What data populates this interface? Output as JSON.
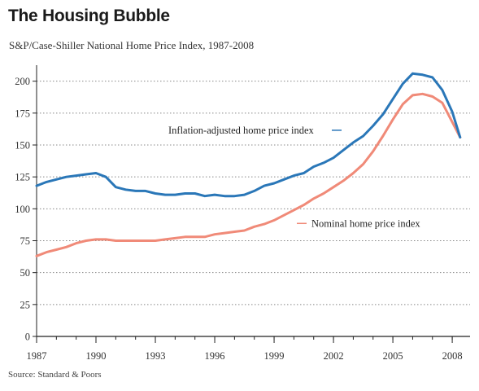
{
  "header": {
    "title": "The Housing Bubble",
    "subtitle": "S&P/Case-Shiller National Home Price Index, 1987-2008"
  },
  "footer": {
    "source": "Source: Standard & Poors"
  },
  "colors": {
    "inflation_adjusted": "#2a77b8",
    "nominal": "#f08a78",
    "grid": "#888888",
    "axis": "#222222"
  },
  "chart_data": {
    "type": "line",
    "title": "The Housing Bubble",
    "subtitle": "S&P/Case-Shiller National Home Price Index, 1987-2008",
    "xlabel": "",
    "ylabel": "",
    "xlim": [
      1987,
      2008.9
    ],
    "ylim": [
      0,
      210
    ],
    "grid": true,
    "x_ticks": [
      1987,
      1990,
      1993,
      1996,
      1999,
      2002,
      2005,
      2008
    ],
    "y_ticks": [
      0,
      25,
      50,
      75,
      100,
      125,
      150,
      175,
      200
    ],
    "annotations": [
      {
        "text": "Inflation-adjusted home price index",
        "series": 0
      },
      {
        "text": "Nominal home price index",
        "series": 1
      }
    ],
    "series": [
      {
        "name": "Inflation-adjusted home price index",
        "x": [
          1987,
          1987.5,
          1988,
          1988.5,
          1989,
          1989.5,
          1990,
          1990.5,
          1991,
          1991.5,
          1992,
          1992.5,
          1993,
          1993.5,
          1994,
          1994.5,
          1995,
          1995.5,
          1996,
          1996.5,
          1997,
          1997.5,
          1998,
          1998.5,
          1999,
          1999.5,
          2000,
          2000.5,
          2001,
          2001.5,
          2002,
          2002.5,
          2003,
          2003.5,
          2004,
          2004.5,
          2005,
          2005.5,
          2006,
          2006.5,
          2007,
          2007.5,
          2008,
          2008.4
        ],
        "values": [
          118,
          121,
          123,
          125,
          126,
          127,
          128,
          125,
          117,
          115,
          114,
          114,
          112,
          111,
          111,
          112,
          112,
          110,
          111,
          110,
          110,
          111,
          114,
          118,
          120,
          123,
          126,
          128,
          133,
          136,
          140,
          146,
          152,
          157,
          165,
          174,
          186,
          198,
          206,
          205,
          203,
          193,
          176,
          156
        ]
      },
      {
        "name": "Nominal home price index",
        "x": [
          1987,
          1987.5,
          1988,
          1988.5,
          1989,
          1989.5,
          1990,
          1990.5,
          1991,
          1991.5,
          1992,
          1992.5,
          1993,
          1993.5,
          1994,
          1994.5,
          1995,
          1995.5,
          1996,
          1996.5,
          1997,
          1997.5,
          1998,
          1998.5,
          1999,
          1999.5,
          2000,
          2000.5,
          2001,
          2001.5,
          2002,
          2002.5,
          2003,
          2003.5,
          2004,
          2004.5,
          2005,
          2005.5,
          2006,
          2006.5,
          2007,
          2007.5,
          2008,
          2008.4
        ],
        "values": [
          63,
          66,
          68,
          70,
          73,
          75,
          76,
          76,
          75,
          75,
          75,
          75,
          75,
          76,
          77,
          78,
          78,
          78,
          80,
          81,
          82,
          83,
          86,
          88,
          91,
          95,
          99,
          103,
          108,
          112,
          117,
          122,
          128,
          135,
          145,
          157,
          170,
          182,
          189,
          190,
          188,
          183,
          168,
          156
        ]
      }
    ]
  }
}
